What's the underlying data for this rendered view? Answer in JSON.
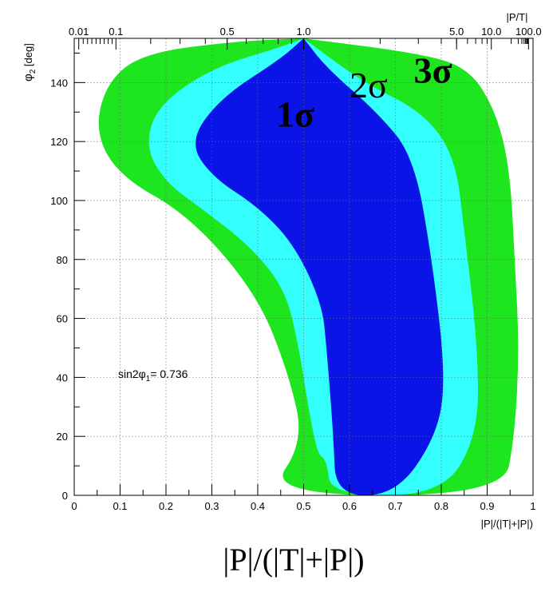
{
  "chart_data": {
    "type": "contour",
    "xlabel": "|P|/(|T|+|P|)",
    "ylabel_main": "φ",
    "ylabel_sub": "2",
    "ylabel_unit": " [deg]",
    "top_axis_label": "|P/T|",
    "bottom_caption": "|P|/(|T|+|P|)",
    "annotation_main": "sin2φ",
    "annotation_sub": "1",
    "annotation_value": "= 0.736",
    "xlim": [
      0,
      1
    ],
    "ylim": [
      0,
      155
    ],
    "x_ticks": [
      0,
      0.1,
      0.2,
      0.3,
      0.4,
      0.5,
      0.6,
      0.7,
      0.8,
      0.9,
      1
    ],
    "x_tick_labels": [
      "0",
      "0.1",
      "0.2",
      "0.3",
      "0.4",
      "0.5",
      "0.6",
      "0.7",
      "0.8",
      "0.9",
      "1"
    ],
    "y_ticks": [
      0,
      20,
      40,
      60,
      80,
      100,
      120,
      140
    ],
    "y_tick_labels": [
      "0",
      "20",
      "40",
      "60",
      "80",
      "100",
      "120",
      "140"
    ],
    "top_ticks": [
      0.01,
      0.1,
      0.5,
      1.0,
      5.0,
      10.0,
      100.0
    ],
    "top_tick_labels": [
      "0.01",
      "0.1",
      "0.5",
      "1.0",
      "5.0",
      "10.0",
      "100.0"
    ],
    "grid": true,
    "colors": {
      "sigma1": "#0a14e6",
      "sigma2": "#33ffff",
      "sigma3": "#1ee61e"
    },
    "regions": [
      {
        "name": "3σ",
        "label": "3σ",
        "color": "#1ee61e",
        "label_pos": [
          0.74,
          140
        ],
        "points": [
          [
            0.5,
            155
          ],
          [
            0.75,
            150
          ],
          [
            0.86,
            145
          ],
          [
            0.92,
            130
          ],
          [
            0.95,
            110
          ],
          [
            0.96,
            80
          ],
          [
            0.97,
            50
          ],
          [
            0.96,
            20
          ],
          [
            0.935,
            0
          ],
          [
            0.42,
            0
          ],
          [
            0.5,
            18
          ],
          [
            0.47,
            40
          ],
          [
            0.4,
            68
          ],
          [
            0.25,
            95
          ],
          [
            0.1,
            108
          ],
          [
            0.045,
            123
          ],
          [
            0.07,
            140
          ],
          [
            0.15,
            150
          ],
          [
            0.35,
            154
          ],
          [
            0.5,
            155
          ]
        ]
      },
      {
        "name": "2σ",
        "label": "2σ",
        "color": "#33ffff",
        "label_pos": [
          0.6,
          135
        ],
        "points": [
          [
            0.5,
            155
          ],
          [
            0.63,
            140
          ],
          [
            0.76,
            130
          ],
          [
            0.83,
            115
          ],
          [
            0.85,
            90
          ],
          [
            0.88,
            50
          ],
          [
            0.88,
            20
          ],
          [
            0.8,
            0
          ],
          [
            0.56,
            0
          ],
          [
            0.55,
            12
          ],
          [
            0.53,
            14
          ],
          [
            0.51,
            30
          ],
          [
            0.49,
            50
          ],
          [
            0.46,
            70
          ],
          [
            0.38,
            85
          ],
          [
            0.28,
            97
          ],
          [
            0.2,
            106
          ],
          [
            0.155,
            118
          ],
          [
            0.18,
            132
          ],
          [
            0.3,
            145
          ],
          [
            0.45,
            152
          ],
          [
            0.5,
            155
          ]
        ]
      },
      {
        "name": "1σ",
        "label": "1σ",
        "color": "#0a14e6",
        "label_pos": [
          0.44,
          125
        ],
        "points": [
          [
            0.5,
            155
          ],
          [
            0.55,
            145
          ],
          [
            0.66,
            130
          ],
          [
            0.74,
            115
          ],
          [
            0.78,
            80
          ],
          [
            0.81,
            40
          ],
          [
            0.79,
            20
          ],
          [
            0.7,
            0
          ],
          [
            0.57,
            0
          ],
          [
            0.565,
            20
          ],
          [
            0.55,
            50
          ],
          [
            0.54,
            65
          ],
          [
            0.48,
            85
          ],
          [
            0.4,
            98
          ],
          [
            0.3,
            108
          ],
          [
            0.25,
            120
          ],
          [
            0.32,
            135
          ],
          [
            0.45,
            148
          ],
          [
            0.5,
            155
          ]
        ]
      }
    ]
  }
}
